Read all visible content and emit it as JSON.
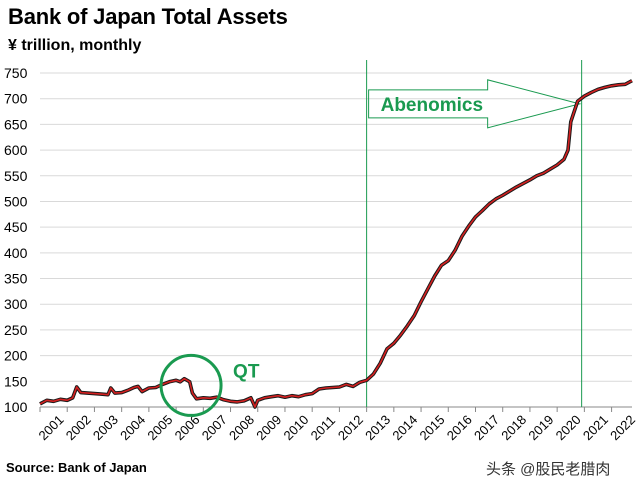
{
  "chart_data": {
    "type": "line",
    "title": "Bank of Japan Total Assets",
    "subtitle": "¥ trillion, monthly",
    "source": "Source: Bank of Japan",
    "ylim": [
      100,
      750
    ],
    "yticks": [
      100,
      150,
      200,
      250,
      300,
      350,
      400,
      450,
      500,
      550,
      600,
      650,
      700,
      750
    ],
    "xlim": [
      2001.0,
      2022.75
    ],
    "xticks": [
      "2001",
      "2002",
      "2003",
      "2004",
      "2005",
      "2006",
      "2007",
      "2008",
      "2009",
      "2010",
      "2011",
      "2012",
      "2013",
      "2014",
      "2015",
      "2016",
      "2017",
      "2018",
      "2019",
      "2020",
      "2021",
      "2022"
    ],
    "grid": true,
    "line_color": "#d42020",
    "series": [
      {
        "points": [
          [
            2001.0,
            106
          ],
          [
            2001.25,
            113
          ],
          [
            2001.5,
            111
          ],
          [
            2001.75,
            115
          ],
          [
            2002.0,
            113
          ],
          [
            2002.2,
            118
          ],
          [
            2002.35,
            139
          ],
          [
            2002.5,
            128
          ],
          [
            2002.75,
            127
          ],
          [
            2003.0,
            126
          ],
          [
            2003.3,
            125
          ],
          [
            2003.5,
            124
          ],
          [
            2003.6,
            137
          ],
          [
            2003.75,
            127
          ],
          [
            2004.0,
            128
          ],
          [
            2004.25,
            133
          ],
          [
            2004.45,
            138
          ],
          [
            2004.6,
            140
          ],
          [
            2004.75,
            130
          ],
          [
            2005.0,
            137
          ],
          [
            2005.25,
            138
          ],
          [
            2005.5,
            144
          ],
          [
            2005.75,
            149
          ],
          [
            2006.0,
            152
          ],
          [
            2006.15,
            149
          ],
          [
            2006.3,
            155
          ],
          [
            2006.5,
            149
          ],
          [
            2006.6,
            127
          ],
          [
            2006.75,
            116
          ],
          [
            2007.0,
            118
          ],
          [
            2007.25,
            117
          ],
          [
            2007.5,
            119
          ],
          [
            2007.75,
            114
          ],
          [
            2008.0,
            111
          ],
          [
            2008.25,
            110
          ],
          [
            2008.5,
            112
          ],
          [
            2008.75,
            118
          ],
          [
            2008.9,
            100
          ],
          [
            2009.0,
            113
          ],
          [
            2009.25,
            118
          ],
          [
            2009.5,
            120
          ],
          [
            2009.75,
            122
          ],
          [
            2010.0,
            119
          ],
          [
            2010.25,
            122
          ],
          [
            2010.5,
            120
          ],
          [
            2010.75,
            124
          ],
          [
            2011.0,
            126
          ],
          [
            2011.25,
            135
          ],
          [
            2011.5,
            137
          ],
          [
            2011.75,
            138
          ],
          [
            2012.0,
            139
          ],
          [
            2012.25,
            144
          ],
          [
            2012.5,
            140
          ],
          [
            2012.75,
            148
          ],
          [
            2013.0,
            152
          ],
          [
            2013.25,
            164
          ],
          [
            2013.5,
            185
          ],
          [
            2013.75,
            213
          ],
          [
            2014.0,
            224
          ],
          [
            2014.25,
            240
          ],
          [
            2014.5,
            258
          ],
          [
            2014.75,
            278
          ],
          [
            2015.0,
            305
          ],
          [
            2015.25,
            330
          ],
          [
            2015.5,
            355
          ],
          [
            2015.75,
            376
          ],
          [
            2016.0,
            385
          ],
          [
            2016.25,
            405
          ],
          [
            2016.5,
            432
          ],
          [
            2016.75,
            452
          ],
          [
            2017.0,
            470
          ],
          [
            2017.25,
            482
          ],
          [
            2017.5,
            495
          ],
          [
            2017.75,
            505
          ],
          [
            2018.0,
            512
          ],
          [
            2018.25,
            520
          ],
          [
            2018.5,
            528
          ],
          [
            2018.75,
            535
          ],
          [
            2019.0,
            542
          ],
          [
            2019.25,
            550
          ],
          [
            2019.5,
            555
          ],
          [
            2019.75,
            563
          ],
          [
            2020.0,
            571
          ],
          [
            2020.25,
            582
          ],
          [
            2020.4,
            600
          ],
          [
            2020.5,
            655
          ],
          [
            2020.75,
            695
          ],
          [
            2021.0,
            705
          ],
          [
            2021.25,
            712
          ],
          [
            2021.5,
            718
          ],
          [
            2021.75,
            722
          ],
          [
            2022.0,
            725
          ],
          [
            2022.25,
            727
          ],
          [
            2022.5,
            728
          ],
          [
            2022.75,
            735
          ]
        ]
      }
    ],
    "vlines": [
      2013.0,
      2020.9
    ],
    "annotations": {
      "abenomics": {
        "text": "Abenomics",
        "x0": 2013.0,
        "x1": 2020.9,
        "y": 690
      },
      "qt": {
        "text": "QT",
        "cx": 2006.55,
        "cy": 142
      }
    }
  },
  "watermark": "头条 @股民老腊肉"
}
